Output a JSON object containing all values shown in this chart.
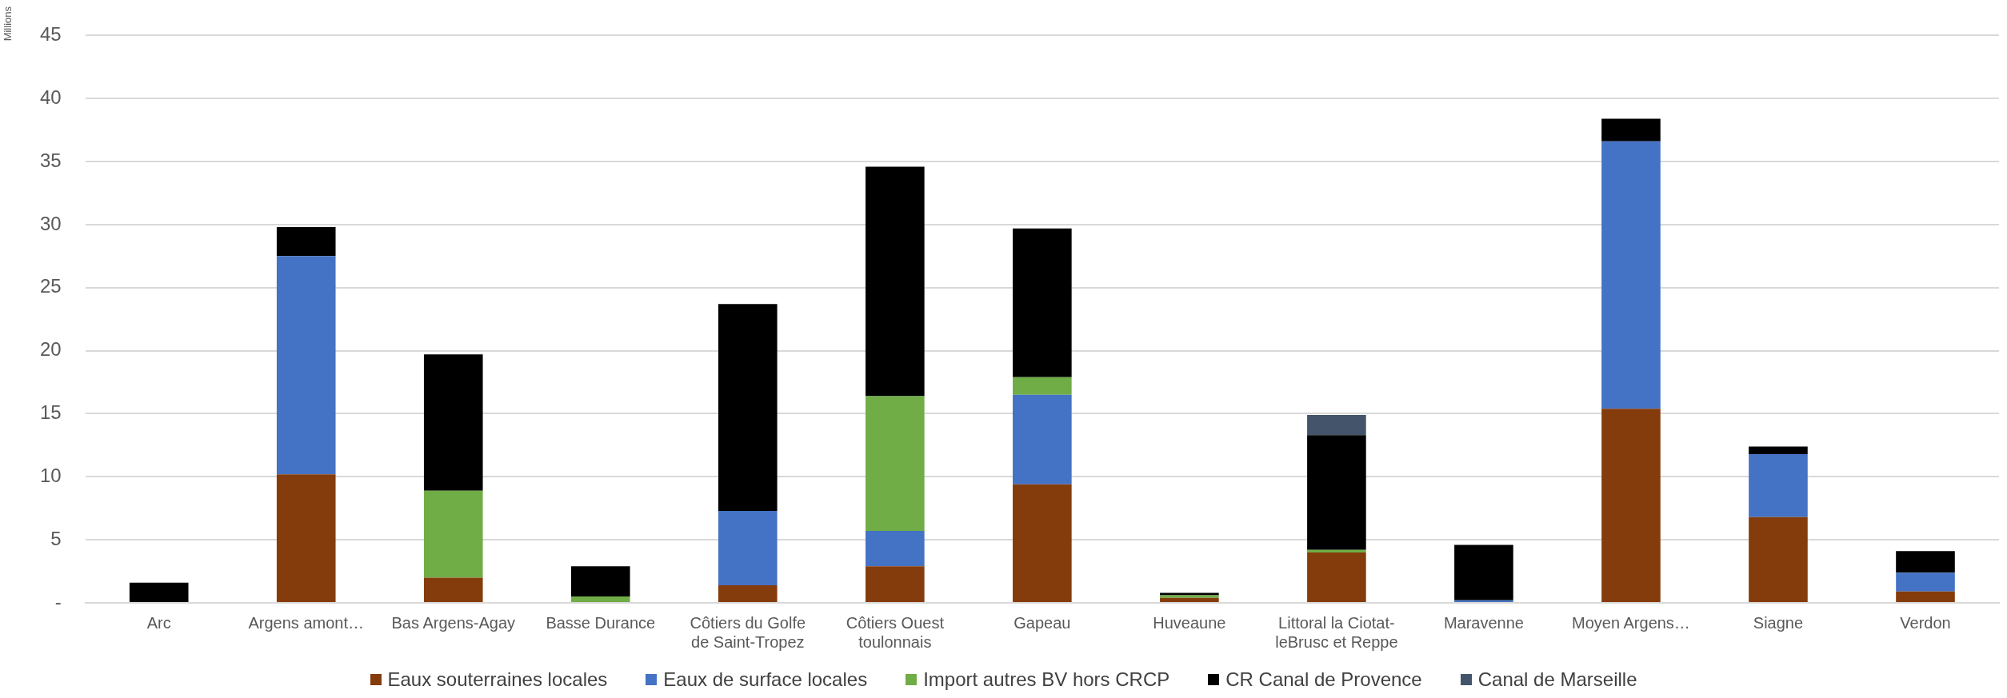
{
  "chart_data": {
    "type": "bar",
    "stacked": true,
    "ylabel": "Millions",
    "categories": [
      "Arc",
      "Argens amont…",
      "Bas Argens-Agay",
      "Basse Durance",
      "Côtiers du Golfe de Saint-Tropez",
      "Côtiers Ouest toulonnais",
      "Gapeau",
      "Huveaune",
      "Littoral la Ciotat-leBrusc et Reppe",
      "Maravenne",
      "Moyen Argens…",
      "Siagne",
      "Verdon"
    ],
    "series": [
      {
        "name": "Eaux souterraines locales",
        "color": "#843c0c",
        "values": [
          0,
          10.2,
          2.0,
          0,
          1.4,
          2.9,
          9.4,
          0.4,
          4.0,
          0,
          15.4,
          6.8,
          0.9
        ]
      },
      {
        "name": " Eaux de surface locales",
        "color": "#4472c4",
        "values": [
          0,
          17.3,
          0,
          0,
          5.9,
          2.8,
          7.1,
          0,
          0,
          0.2,
          21.2,
          5.0,
          1.5
        ]
      },
      {
        "name": "Import autres BV hors CRCP",
        "color": "#70ad47",
        "values": [
          0,
          0,
          6.9,
          0.5,
          0,
          10.7,
          1.4,
          0.2,
          0.2,
          0,
          0,
          0,
          0
        ]
      },
      {
        "name": "CR Canal de Provence",
        "color": "#000000",
        "values": [
          1.6,
          2.3,
          10.8,
          2.4,
          16.4,
          18.2,
          11.8,
          0.2,
          9.1,
          4.4,
          1.8,
          0.6,
          1.7
        ]
      },
      {
        "name": "Canal de Marseille",
        "color": "#44546a",
        "values": [
          0,
          0,
          0,
          0,
          0,
          0,
          0,
          0,
          1.6,
          0,
          0,
          0,
          0
        ]
      }
    ],
    "ylim": [
      0,
      45
    ],
    "yticks": [
      {
        "value": 0,
        "label": "-"
      },
      5,
      10,
      15,
      20,
      25,
      30,
      35,
      40,
      45
    ],
    "grid": "y",
    "legend": "bottom"
  }
}
